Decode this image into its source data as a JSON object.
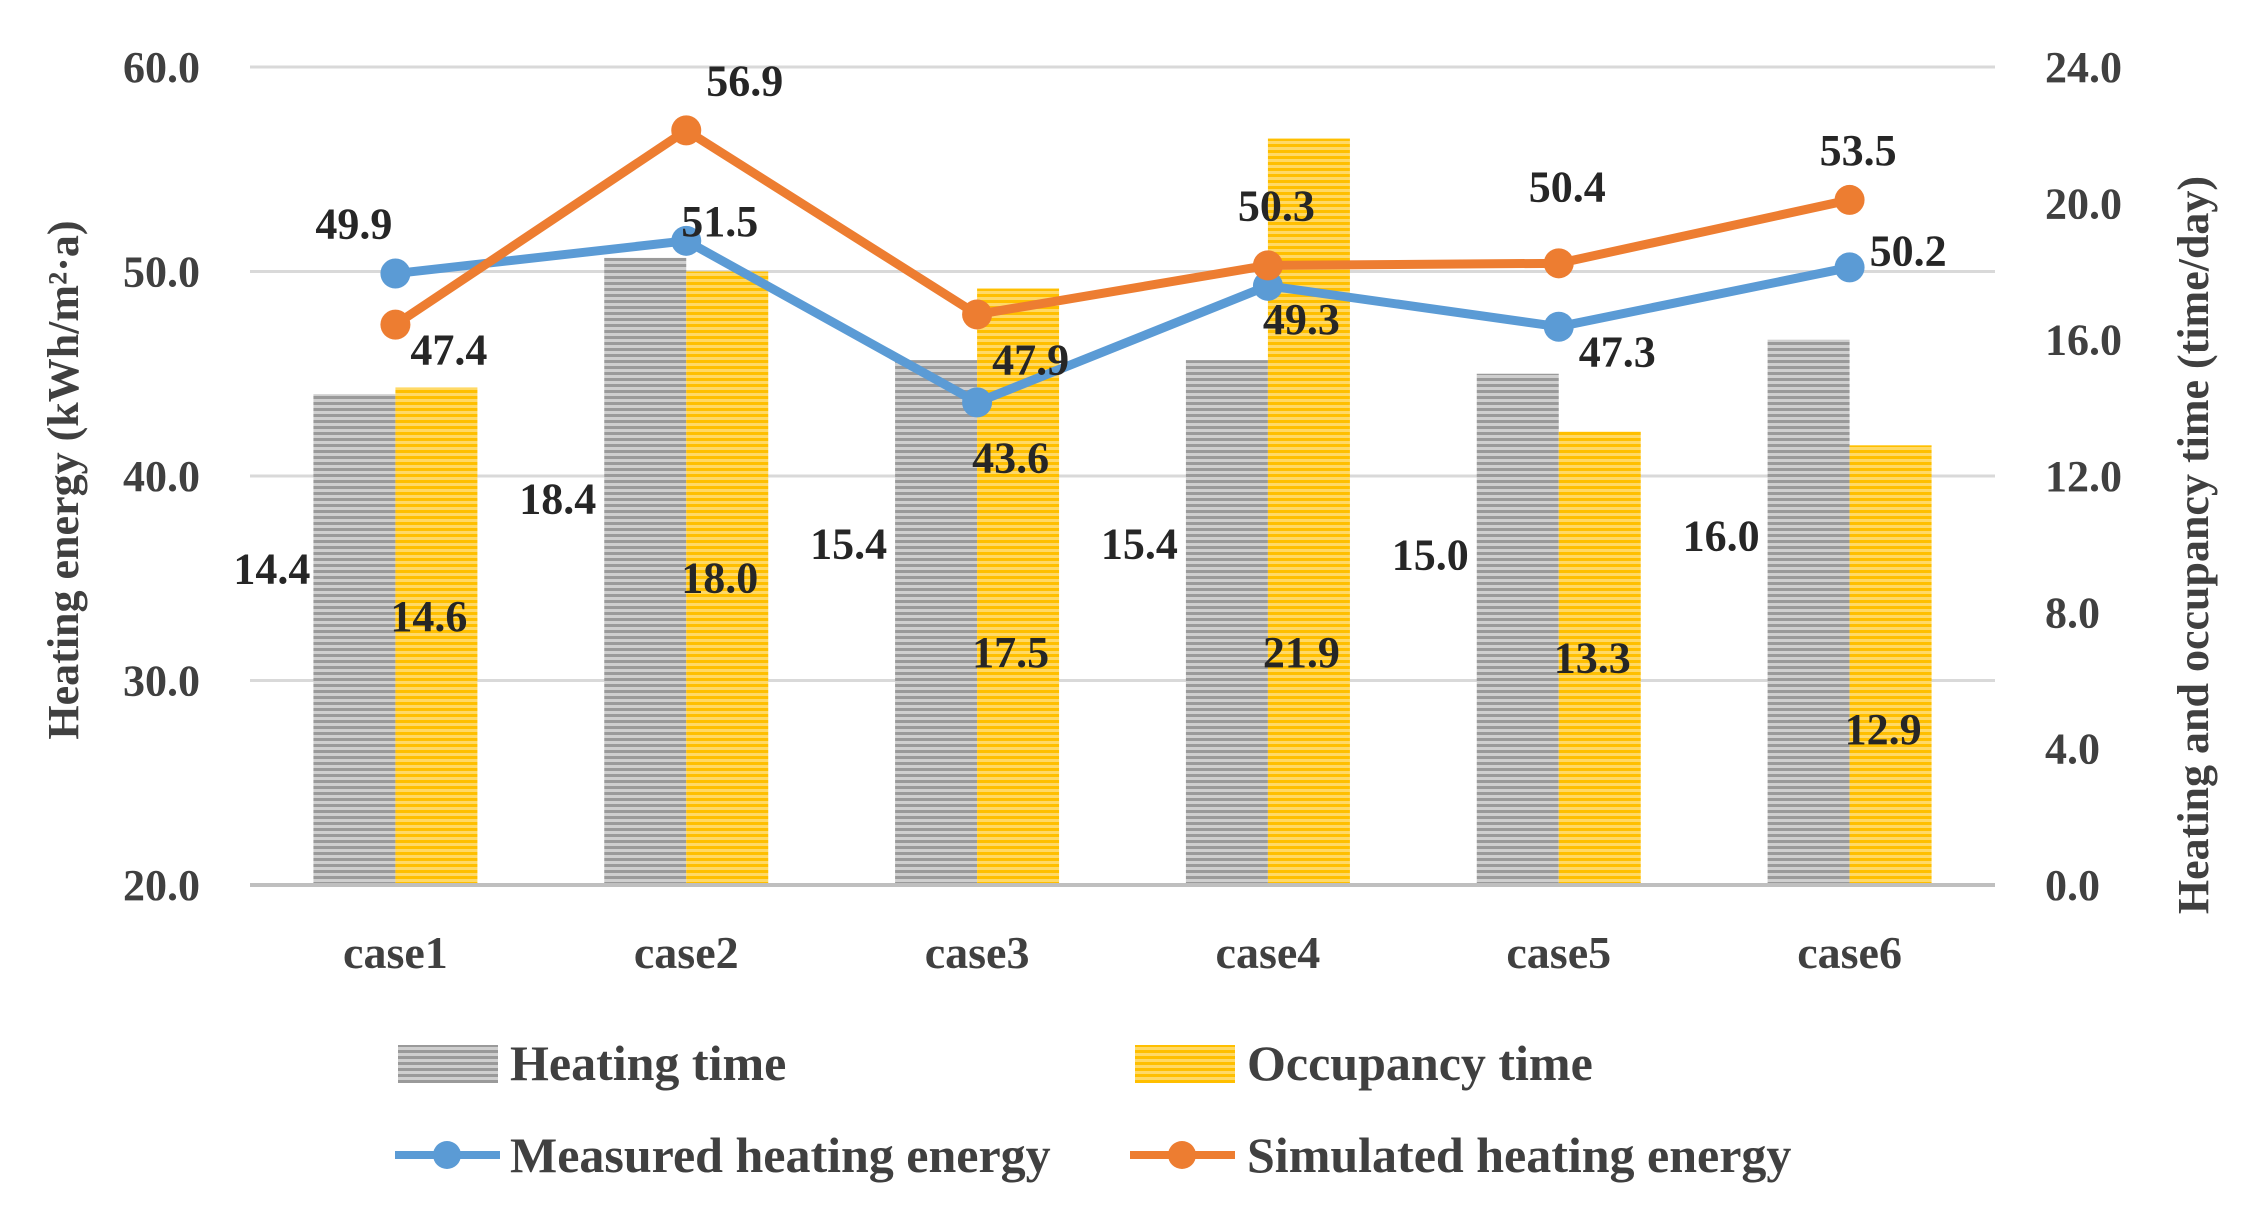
{
  "chart_data": {
    "type": "bar",
    "categories": [
      "case1",
      "case2",
      "case3",
      "case4",
      "case5",
      "case6"
    ],
    "bar_series": [
      {
        "name": "Heating time",
        "axis": "right",
        "values": [
          14.4,
          18.4,
          15.4,
          15.4,
          15.0,
          16.0
        ],
        "labels": [
          "14.4",
          "18.4",
          "15.4",
          "15.4",
          "15.0",
          "16.0"
        ]
      },
      {
        "name": "Occupancy time",
        "axis": "right",
        "values": [
          14.6,
          18.0,
          17.5,
          21.9,
          13.3,
          12.9
        ],
        "labels": [
          "14.6",
          "18.0",
          "17.5",
          "21.9",
          "13.3",
          "12.9"
        ]
      }
    ],
    "line_series": [
      {
        "name": "Measured heating energy",
        "axis": "left",
        "values": [
          49.9,
          51.5,
          43.6,
          49.3,
          47.3,
          50.2
        ],
        "labels": [
          "49.9",
          "51.5",
          "43.6",
          "49.3",
          "47.3",
          "50.2"
        ]
      },
      {
        "name": "Simulated heating energy",
        "axis": "left",
        "values": [
          47.4,
          56.9,
          47.9,
          50.3,
          50.4,
          53.5
        ],
        "labels": [
          "47.4",
          "56.9",
          "47.9",
          "50.3",
          "50.4",
          "53.5"
        ]
      }
    ],
    "ylabel": "Heating energy (kWh/m²·a)",
    "ylabel_right": "Heating and occupancy time (time/day)",
    "ylim": [
      20,
      60
    ],
    "ylim_right": [
      0,
      24
    ],
    "yticks": [
      "20.0",
      "30.0",
      "40.0",
      "50.0",
      "60.0"
    ],
    "yticks_right": [
      "0.0",
      "4.0",
      "8.0",
      "12.0",
      "16.0",
      "20.0",
      "24.0"
    ],
    "grid": true,
    "legend_position": "bottom"
  },
  "colors": {
    "heating_time": "#a6a6a6",
    "occupancy_time": "#ffc000",
    "measured": "#5b9bd5",
    "simulated": "#ed7d31",
    "grid": "#d9d9d9",
    "text": "#404040"
  }
}
